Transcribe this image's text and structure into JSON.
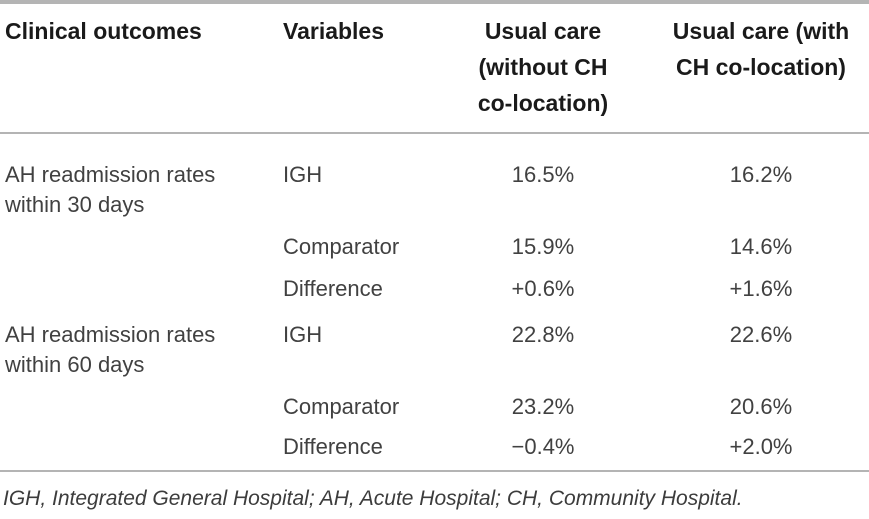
{
  "table": {
    "headers": {
      "clinical_outcomes": "Clinical outcomes",
      "variables": "Variables",
      "usual_care_without": "Usual care (without CH co-location)",
      "usual_care_with": "Usual care (with CH co-location)"
    },
    "rows": [
      {
        "outcome": "AH readmission rates within 30 days",
        "variable": "IGH",
        "without": "16.5%",
        "with": "16.2%"
      },
      {
        "outcome": "",
        "variable": "Comparator",
        "without": "15.9%",
        "with": "14.6%"
      },
      {
        "outcome": "",
        "variable": "Difference",
        "without": "+0.6%",
        "with": "+1.6%"
      },
      {
        "outcome": "AH readmission rates within 60 days",
        "variable": "IGH",
        "without": "22.8%",
        "with": "22.6%"
      },
      {
        "outcome": "",
        "variable": "Comparator",
        "without": "23.2%",
        "with": "20.6%"
      },
      {
        "outcome": "",
        "variable": "Difference",
        "without": "−0.4%",
        "with": "+2.0%"
      }
    ],
    "footnote": "IGH, Integrated General Hospital; AH, Acute Hospital; CH, Community Hospital."
  },
  "colors": {
    "rule": "#b4b4b4",
    "header_text": "#1a1a1a",
    "body_text": "#414141",
    "background": "#ffffff"
  }
}
